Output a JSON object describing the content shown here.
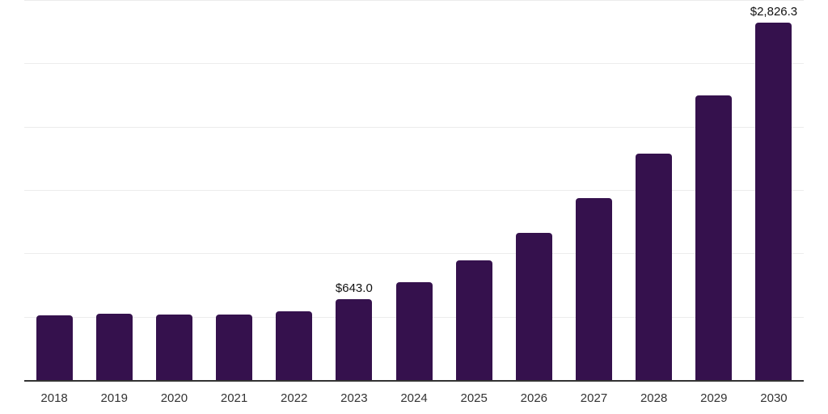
{
  "chart_data": {
    "type": "bar",
    "title": "",
    "xlabel": "",
    "ylabel": "",
    "categories": [
      "2018",
      "2019",
      "2020",
      "2021",
      "2022",
      "2023",
      "2024",
      "2025",
      "2026",
      "2027",
      "2028",
      "2029",
      "2030"
    ],
    "values": [
      517,
      530,
      521,
      526,
      547,
      643.0,
      779,
      951,
      1165,
      1440,
      1795,
      2253,
      2826.3
    ],
    "data_labels": [
      "",
      "",
      "",
      "",
      "",
      "$643.0",
      "",
      "",
      "",
      "",
      "",
      "",
      "$2,826.3"
    ],
    "ylim": [
      0,
      3000
    ],
    "gridline_values": [
      500,
      1000,
      1500,
      2000,
      2500,
      3000
    ],
    "grid": "horizontal",
    "legend_position": "none",
    "bar_color": "#35114D",
    "gridline_color": "#ececec",
    "axis_line_color": "#333333",
    "tick_label_color": "#333333",
    "data_label_color": "#111111",
    "background_color": "#ffffff"
  }
}
